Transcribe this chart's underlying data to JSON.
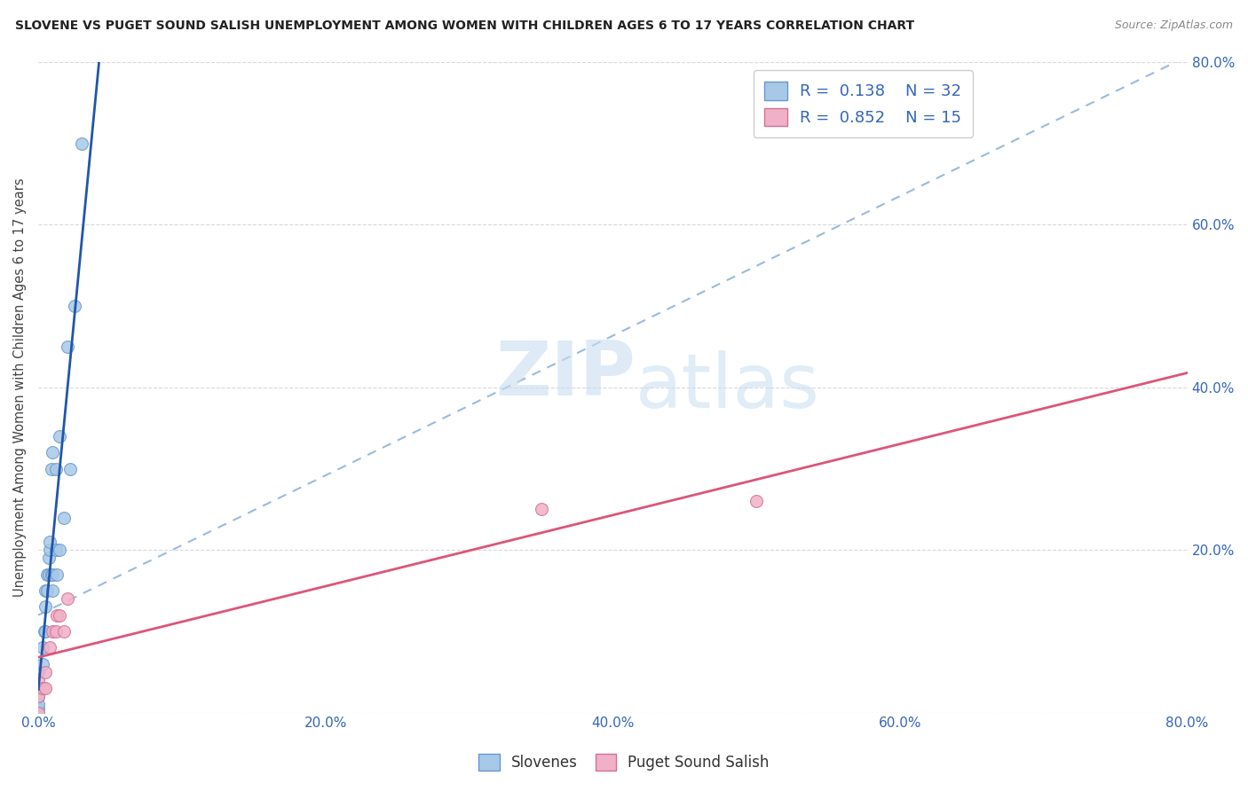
{
  "title": "SLOVENE VS PUGET SOUND SALISH UNEMPLOYMENT AMONG WOMEN WITH CHILDREN AGES 6 TO 17 YEARS CORRELATION CHART",
  "source": "Source: ZipAtlas.com",
  "ylabel": "Unemployment Among Women with Children Ages 6 to 17 years",
  "xlim": [
    0,
    0.8
  ],
  "ylim": [
    0,
    0.8
  ],
  "xticks": [
    0.0,
    0.2,
    0.4,
    0.6,
    0.8
  ],
  "yticks": [
    0.0,
    0.2,
    0.4,
    0.6,
    0.8
  ],
  "xticklabels": [
    "0.0%",
    "20.0%",
    "40.0%",
    "60.0%",
    "80.0%"
  ],
  "right_yticklabels": [
    "",
    "20.0%",
    "40.0%",
    "60.0%",
    "80.0%"
  ],
  "slovene_color": "#a8c8e8",
  "slovene_edge_color": "#6699cc",
  "puget_color": "#f0b0c8",
  "puget_edge_color": "#d47090",
  "slovene_R": 0.138,
  "slovene_N": 32,
  "puget_R": 0.852,
  "puget_N": 15,
  "slovene_line_color": "#2255aa",
  "puget_line_color": "#dd5577",
  "dashed_line_color": "#99bbdd",
  "watermark_zip": "ZIP",
  "watermark_atlas": "atlas",
  "slovene_points_x": [
    0.0,
    0.0,
    0.0,
    0.0,
    0.0,
    0.003,
    0.003,
    0.004,
    0.005,
    0.005,
    0.005,
    0.006,
    0.006,
    0.007,
    0.007,
    0.008,
    0.008,
    0.009,
    0.009,
    0.01,
    0.01,
    0.01,
    0.012,
    0.012,
    0.013,
    0.015,
    0.015,
    0.018,
    0.02,
    0.022,
    0.025,
    0.03
  ],
  "slovene_points_y": [
    0.005,
    0.01,
    0.02,
    0.03,
    0.05,
    0.06,
    0.08,
    0.1,
    0.1,
    0.13,
    0.15,
    0.15,
    0.17,
    0.17,
    0.19,
    0.2,
    0.21,
    0.17,
    0.3,
    0.15,
    0.17,
    0.32,
    0.2,
    0.3,
    0.17,
    0.2,
    0.34,
    0.24,
    0.45,
    0.3,
    0.5,
    0.7
  ],
  "puget_points_x": [
    0.0,
    0.0,
    0.0,
    0.003,
    0.005,
    0.005,
    0.008,
    0.01,
    0.012,
    0.013,
    0.015,
    0.018,
    0.02,
    0.35,
    0.5
  ],
  "puget_points_y": [
    0.0,
    0.02,
    0.04,
    0.03,
    0.03,
    0.05,
    0.08,
    0.1,
    0.1,
    0.12,
    0.12,
    0.1,
    0.14,
    0.25,
    0.26
  ],
  "marker_size": 100,
  "accent_color": "#3366bb",
  "legend_color": "#3366bb",
  "text_color": "#222222",
  "source_color": "#888888"
}
